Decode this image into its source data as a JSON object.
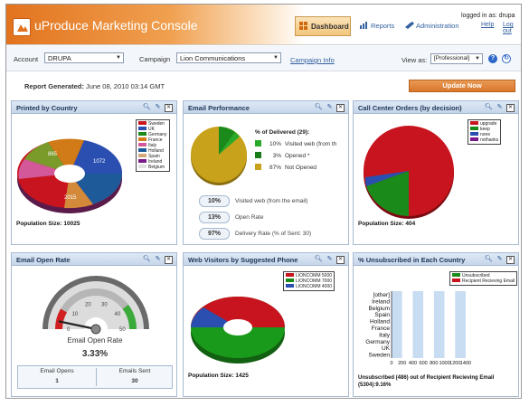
{
  "header": {
    "app_title": "uProduce Marketing Console",
    "nav": {
      "dashboard": "Dashboard",
      "reports": "Reports",
      "administration": "Administration"
    },
    "logged_in": "logged in as: drupa",
    "help": "Help",
    "logout": "Log out"
  },
  "toolbar": {
    "account_label": "Account",
    "account_value": "DRUPA",
    "campaign_label": "Campaign",
    "campaign_value": "Lion Communications",
    "campaign_info": "Campaign Info",
    "view_as_label": "View as:",
    "view_as_value": "[Professional]"
  },
  "report": {
    "label": "Report Generated:",
    "value": "June 08, 2010 03:14 GMT",
    "update_button": "Update Now"
  },
  "panels": {
    "printed_by_country": {
      "title": "Printed by Country",
      "population": "Population Size: 10025",
      "legend": [
        "Sweden",
        "UK",
        "Germany",
        "France",
        "Italy",
        "Holland",
        "Spain",
        "Ireland",
        "Belgium"
      ],
      "slice_labels": [
        "1072",
        "2015",
        "865"
      ]
    },
    "email_performance": {
      "title": "Email Performance",
      "legend_title": "% of Delivered (29):",
      "legend": [
        {
          "pct": "10%",
          "label": "Visited web (from th"
        },
        {
          "pct": "3%",
          "label": "Opened *"
        },
        {
          "pct": "87%",
          "label": "Not Opened"
        }
      ],
      "rows": [
        {
          "value": "10%",
          "label": "Visited web (from the email)"
        },
        {
          "value": "13%",
          "label": "Open Rate"
        },
        {
          "value": "97%",
          "label": "Delivery Rate (% of Sent: 30)"
        }
      ]
    },
    "call_center": {
      "title": "Call Center Orders (by decision)",
      "population": "Population Size: 404",
      "legend": [
        "upgrade",
        "keep",
        "none",
        "nothanks"
      ]
    },
    "email_open_rate": {
      "title": "Email Open Rate",
      "gauge_ticks": [
        "0",
        "10",
        "20",
        "30",
        "40",
        "50"
      ],
      "gauge_value": 3.33,
      "gauge_label": "Email Open Rate",
      "gauge_pct": "3.33%",
      "opens_label": "Email Opens",
      "opens_value": "1",
      "sent_label": "Emails Sent",
      "sent_value": "30"
    },
    "web_visitors": {
      "title": "Web Visitors by Suggested Phone",
      "population": "Population Size: 1425",
      "legend": [
        "LIONCOMM 5000",
        "LIONCOMM 7000",
        "LIONCOMM 4000"
      ]
    },
    "unsubscribed": {
      "title": "% Unsubscribed in Each Country",
      "legend": [
        "Unsubscribed",
        "Recipient Recieving Email"
      ],
      "categories": [
        "[other]",
        "Ireland",
        "Belgium",
        "Spain",
        "Holland",
        "France",
        "Italy",
        "Germany",
        "UK",
        "Sweden"
      ],
      "x_ticks": [
        "0",
        "200",
        "400",
        "600",
        "800",
        "1000",
        "1200",
        "1400"
      ],
      "caption": "Unsubscribed (486) out of Recipient Recieving Email (5304):9.16%"
    }
  },
  "colors": {
    "accent": "#e2731e",
    "panel_header": "#c5d6ea",
    "red": "#c8141e",
    "green": "#1a8a1a",
    "blue": "#2a4fb0",
    "gold": "#c8a21a"
  }
}
